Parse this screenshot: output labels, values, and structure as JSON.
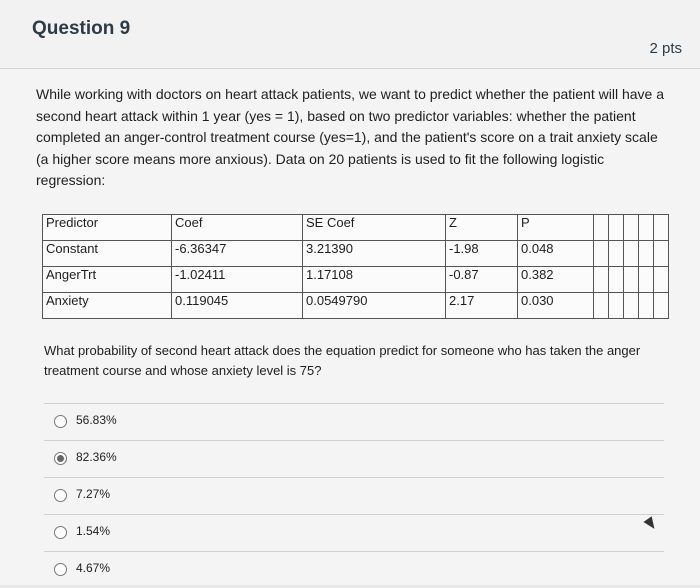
{
  "header": {
    "title": "Question 9",
    "points": "2 pts"
  },
  "prompt": "While working with doctors on heart attack patients, we want to predict whether the patient will have a second heart attack within 1 year (yes = 1), based on two predictor variables: whether the patient completed an anger-control treatment course (yes=1), and the patient's score on a trait anxiety scale (a higher score means more anxious). Data on 20 patients is used to fit the following logistic regression:",
  "table": {
    "headers": [
      "Predictor",
      "Coef",
      "SE Coef",
      "Z",
      "P"
    ],
    "rows": [
      [
        "Constant",
        "-6.36347",
        "3.21390",
        "-1.98",
        "0.048"
      ],
      [
        "AngerTrt",
        "-1.02411",
        "1.17108",
        "-0.87",
        "0.382"
      ],
      [
        "Anxiety",
        "0.119045",
        "0.0549790",
        "2.17",
        "0.030"
      ]
    ]
  },
  "question": "What probability of second heart attack does the equation predict for someone who has taken the anger treatment course and whose anxiety level is 75?",
  "answers": [
    {
      "label": "56.83%",
      "selected": false
    },
    {
      "label": "82.36%",
      "selected": true
    },
    {
      "label": "7.27%",
      "selected": false
    },
    {
      "label": "1.54%",
      "selected": false
    },
    {
      "label": "4.67%",
      "selected": false
    }
  ]
}
